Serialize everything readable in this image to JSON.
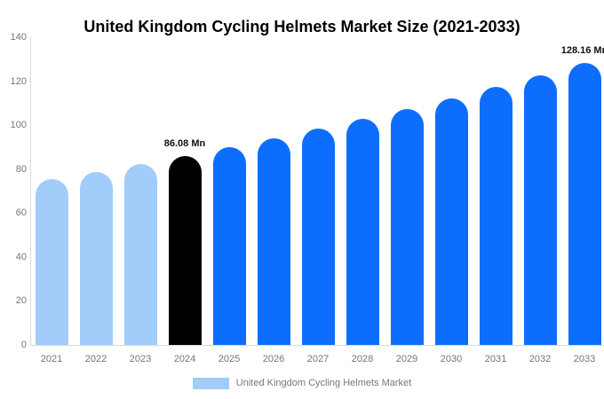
{
  "title": "United Kingdom Cycling Helmets Market Size (2021-2033)",
  "colors": {
    "light": "#a2ccfa",
    "primary": "#0d6efd",
    "highlight": "#000000",
    "axis_line": "#d9d9d9",
    "tick_text": "#757575",
    "legend_text": "#777777"
  },
  "chart_data": {
    "type": "bar",
    "title": "United Kingdom Cycling Helmets Market Size (2021-2033)",
    "xlabel": "",
    "ylabel": "",
    "ylim": [
      0,
      140
    ],
    "yticks": [
      0,
      20,
      40,
      60,
      80,
      100,
      120,
      140
    ],
    "grid": false,
    "categories": [
      "2021",
      "2022",
      "2023",
      "2024",
      "2025",
      "2026",
      "2027",
      "2028",
      "2029",
      "2030",
      "2031",
      "2032",
      "2033"
    ],
    "values": [
      75.4,
      78.8,
      82.4,
      86.08,
      90.0,
      94.0,
      98.3,
      102.7,
      107.4,
      112.2,
      117.3,
      122.6,
      128.16
    ],
    "bar_colors": [
      "light",
      "light",
      "light",
      "highlight",
      "primary",
      "primary",
      "primary",
      "primary",
      "primary",
      "primary",
      "primary",
      "primary",
      "primary"
    ],
    "data_labels": [
      {
        "category": "2024",
        "text": "86.08 Mn"
      },
      {
        "category": "2033",
        "text": "128.16 Mn"
      }
    ],
    "legend": {
      "position": "bottom",
      "items": [
        {
          "label": "United Kingdom Cycling Helmets Market",
          "swatch": "light"
        }
      ]
    }
  }
}
